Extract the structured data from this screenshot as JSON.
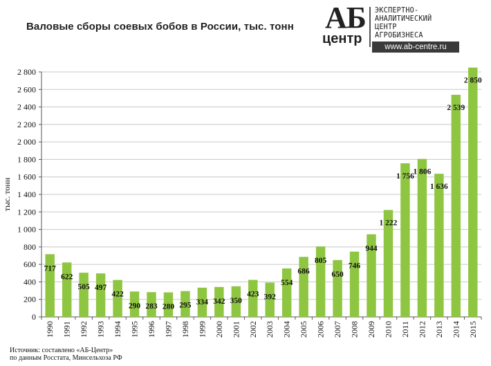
{
  "chart_data": {
    "type": "bar",
    "title": "Валовые сборы соевых бобов в России, тыс. тонн",
    "ylabel": "тыс. тонн",
    "xlabel": "",
    "ylim": [
      0,
      2800
    ],
    "yticks": [
      0,
      200,
      400,
      600,
      800,
      1000,
      1200,
      1400,
      1600,
      1800,
      2000,
      2200,
      2400,
      2600,
      2800
    ],
    "ytick_labels": [
      "0",
      "200",
      "400",
      "600",
      "800",
      "1 000",
      "1 200",
      "1 400",
      "1 600",
      "1 800",
      "2 000",
      "2 200",
      "2 400",
      "2 600",
      "2 800"
    ],
    "grid": true,
    "bar_color": "#8fc641",
    "categories": [
      "1990",
      "1991",
      "1992",
      "1993",
      "1994",
      "1995",
      "1996",
      "1997",
      "1998",
      "1999",
      "2000",
      "2001",
      "2002",
      "2003",
      "2004",
      "2005",
      "2006",
      "2007",
      "2008",
      "2009",
      "2010",
      "2011",
      "2012",
      "2013",
      "2014",
      "2015"
    ],
    "values": [
      717,
      622,
      505,
      497,
      422,
      290,
      283,
      280,
      295,
      334,
      342,
      350,
      423,
      392,
      554,
      686,
      805,
      650,
      746,
      944,
      1222,
      1756,
      1806,
      1636,
      2539,
      2850
    ],
    "value_labels": [
      "717",
      "622",
      "505",
      "497",
      "422",
      "290",
      "283",
      "280",
      "295",
      "334",
      "342",
      "350",
      "423",
      "392",
      "554",
      "686",
      "805",
      "650",
      "746",
      "944",
      "1 222",
      "1 756",
      "1 806",
      "1 636",
      "2 539",
      "2 850"
    ]
  },
  "logo": {
    "brand_top": "АБ",
    "brand_bottom": "центр",
    "line1": "ЭКСПЕРТНО-",
    "line2": "АНАЛИТИЧЕСКИЙ",
    "line3": "ЦЕНТР",
    "line4": "АГРОБИЗНЕСА",
    "url": "www.ab-centre.ru"
  },
  "source": {
    "line1": "Источник:  составлено «АБ-Центр»",
    "line2": "по данным Росстата, Минсельхоза  РФ"
  }
}
